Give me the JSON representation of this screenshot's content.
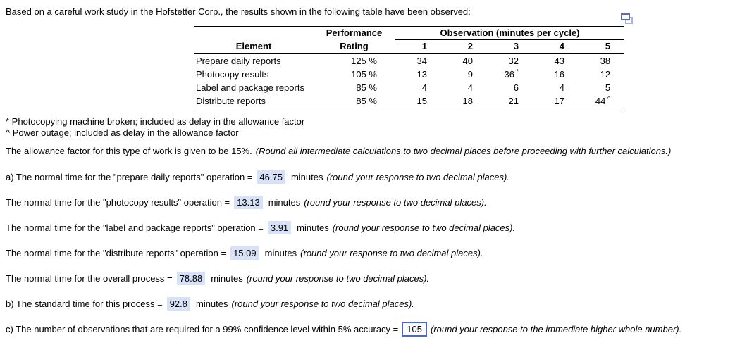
{
  "intro": "Based on a careful work study in the Hofstetter Corp., the results shown in the following table have been observed:",
  "icons": {
    "popout": "popout-window-icon"
  },
  "colors": {
    "answer_highlight": "#d8e1f5",
    "input_border": "#4a68cc",
    "icon_dark": "#5b68bb",
    "icon_light": "#a9b2de"
  },
  "table": {
    "element_header": "Element",
    "perf_header_line1": "Performance",
    "perf_header_line2": "Rating",
    "obs_header": "Observation (minutes per cycle)",
    "obs_cols": [
      "1",
      "2",
      "3",
      "4",
      "5"
    ],
    "rows": [
      {
        "element": "Prepare daily reports",
        "rating": "125 %",
        "obs": [
          "34",
          "40",
          "32",
          "43",
          "38"
        ]
      },
      {
        "element": "Photocopy results",
        "rating": "105 %",
        "obs": [
          "13",
          "9",
          "36*",
          "16",
          "12"
        ]
      },
      {
        "element": "Label and package reports",
        "rating": "85 %",
        "obs": [
          "4",
          "4",
          "6",
          "4",
          "5"
        ]
      },
      {
        "element": "Distribute reports",
        "rating": "85 %",
        "obs": [
          "15",
          "18",
          "21",
          "17",
          "44^"
        ]
      }
    ]
  },
  "footnotes": [
    "* Photocopying machine broken; included as delay in the allowance factor",
    "^ Power outage; included as delay in the allowance factor"
  ],
  "allowance": {
    "text": "The allowance factor for this type of work is given to be 15%.",
    "note": "(Round all intermediate calculations to two decimal places before proceeding with further calculations.)"
  },
  "answers": [
    {
      "prefix": "a) The normal time for the \"prepare daily reports\" operation =",
      "value": "46.75",
      "unit": "minutes",
      "note": "(round your response to two decimal places).",
      "display": "highlight"
    },
    {
      "prefix": "The normal time for the \"photocopy results\" operation =",
      "value": "13.13",
      "unit": "minutes",
      "note": "(round your response to two decimal places).",
      "display": "highlight"
    },
    {
      "prefix": "The normal time for the \"label and package reports\" operation =",
      "value": "3.91",
      "unit": "minutes",
      "note": "(round your response to two decimal places).",
      "display": "highlight"
    },
    {
      "prefix": "The normal time for the \"distribute reports\" operation =",
      "value": "15.09",
      "unit": "minutes",
      "note": "(round your response to two decimal places).",
      "display": "highlight"
    },
    {
      "prefix": "The normal time for the overall process =",
      "value": "78.88",
      "unit": "minutes",
      "note": "(round your response to two decimal places).",
      "display": "highlight"
    },
    {
      "prefix": "b) The standard time for this process =",
      "value": "92.8",
      "unit": "minutes",
      "note": "(round your response to two decimal places).",
      "display": "highlight"
    },
    {
      "prefix": "c) The number of observations that are required for a 99% confidence level within 5% accuracy =",
      "value": "105",
      "unit": "",
      "note": "(round your response to the immediate higher whole number).",
      "display": "inputbox"
    }
  ]
}
